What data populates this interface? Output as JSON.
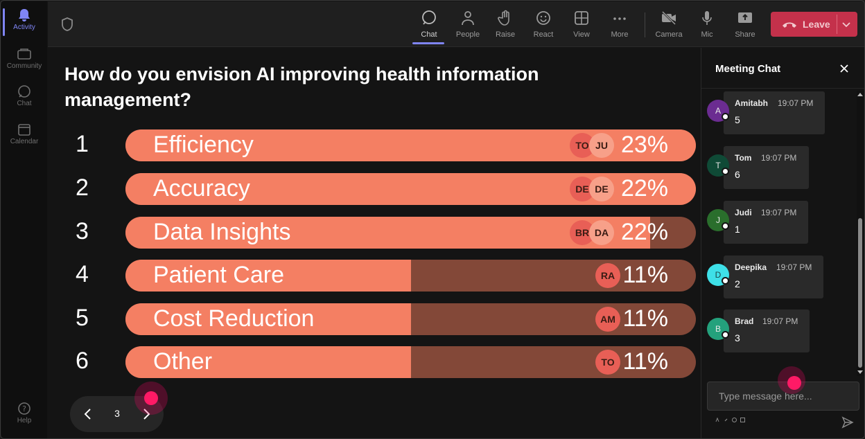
{
  "rail": {
    "items": [
      {
        "label": "Activity",
        "icon": "bell-icon",
        "active": true
      },
      {
        "label": "Community",
        "icon": "community-icon",
        "active": false
      },
      {
        "label": "Chat",
        "icon": "chat-icon",
        "active": false
      },
      {
        "label": "Calendar",
        "icon": "calendar-icon",
        "active": false
      }
    ],
    "help": {
      "label": "Help",
      "icon": "help-icon"
    }
  },
  "toolbar": {
    "buttons": [
      {
        "label": "Chat",
        "icon": "chat-icon",
        "active": true
      },
      {
        "label": "People",
        "icon": "people-icon",
        "active": false
      },
      {
        "label": "Raise",
        "icon": "hand-icon",
        "active": false
      },
      {
        "label": "React",
        "icon": "smile-icon",
        "active": false
      },
      {
        "label": "View",
        "icon": "grid-icon",
        "active": false
      },
      {
        "label": "More",
        "icon": "more-icon",
        "active": false
      },
      {
        "label": "Camera",
        "icon": "camera-off-icon",
        "active": false
      },
      {
        "label": "Mic",
        "icon": "mic-icon",
        "active": false
      },
      {
        "label": "Share",
        "icon": "share-icon",
        "active": false
      }
    ],
    "leave_label": "Leave"
  },
  "poll": {
    "question": "How do you envision AI improving health information management?",
    "options": [
      {
        "rank": "1",
        "label": "Efficiency",
        "percent": "23%",
        "fill": 1.0,
        "avatars": [
          "TO",
          "JU"
        ]
      },
      {
        "rank": "2",
        "label": "Accuracy",
        "percent": "22%",
        "fill": 1.0,
        "avatars": [
          "DE",
          "DE"
        ]
      },
      {
        "rank": "3",
        "label": "Data Insights",
        "percent": "22%",
        "fill": 0.92,
        "avatars": [
          "BR",
          "DA"
        ]
      },
      {
        "rank": "4",
        "label": "Patient Care",
        "percent": "11%",
        "fill": 0.5,
        "avatars": [
          "RA"
        ]
      },
      {
        "rank": "5",
        "label": "Cost Reduction",
        "percent": "11%",
        "fill": 0.5,
        "avatars": [
          "AM"
        ]
      },
      {
        "rank": "6",
        "label": "Other",
        "percent": "11%",
        "fill": 0.5,
        "avatars": [
          "TO"
        ]
      }
    ],
    "page": "3"
  },
  "chat": {
    "title": "Meeting Chat",
    "messages": [
      {
        "initial": "A",
        "name": "Amitabh",
        "time": "19:07 PM",
        "text": "5",
        "color": "#6b2c91"
      },
      {
        "initial": "T",
        "name": "Tom",
        "time": "19:07 PM",
        "text": "6",
        "color": "#0f4a36"
      },
      {
        "initial": "J",
        "name": "Judi",
        "time": "19:07 PM",
        "text": "1",
        "color": "#2a6e2c"
      },
      {
        "initial": "D",
        "name": "Deepika",
        "time": "19:07 PM",
        "text": "2",
        "color": "#3ee0e8"
      },
      {
        "initial": "B",
        "name": "Brad",
        "time": "19:07 PM",
        "text": "3",
        "color": "#24a17c"
      }
    ],
    "input_placeholder": "Type message here..."
  },
  "colors": {
    "accent": "#7f85f5",
    "bar_fill": "#f47f63",
    "bar_track": "#834838",
    "leave": "#c4314b",
    "click_marker": "#ff1a66"
  }
}
